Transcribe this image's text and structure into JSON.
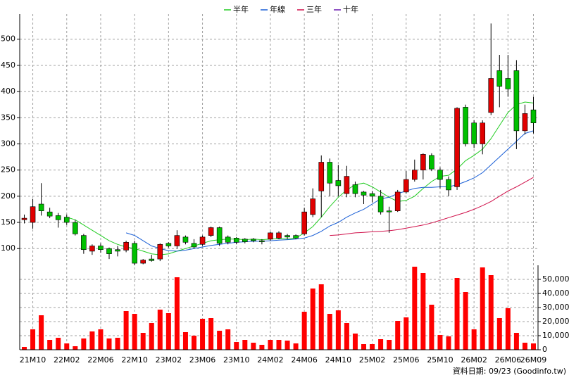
{
  "chart_data": [
    {
      "type": "candlestick",
      "legend": "top",
      "up_color": "#e00000",
      "down_color": "#00c000",
      "open": [
        155,
        150,
        185,
        170,
        163,
        160,
        150,
        125,
        95,
        105,
        100,
        98,
        97,
        110,
        72,
        80,
        80,
        110,
        105,
        122,
        110,
        108,
        125,
        140,
        122,
        120,
        118,
        118,
        115,
        118,
        120,
        125,
        125,
        128,
        165,
        210,
        265,
        230,
        205,
        222,
        208,
        205,
        200,
        172,
        172,
        208,
        232,
        250,
        278,
        250,
        232,
        218,
        370,
        340,
        300,
        360,
        440,
        425,
        440,
        325,
        365
      ],
      "high": [
        165,
        195,
        225,
        178,
        168,
        165,
        155,
        128,
        108,
        110,
        102,
        105,
        115,
        115,
        80,
        88,
        110,
        112,
        135,
        125,
        118,
        125,
        142,
        142,
        125,
        122,
        120,
        120,
        118,
        132,
        133,
        128,
        127,
        178,
        215,
        278,
        272,
        260,
        258,
        228,
        210,
        210,
        212,
        180,
        212,
        248,
        270,
        282,
        282,
        255,
        238,
        370,
        375,
        345,
        345,
        530,
        470,
        470,
        460,
        375,
        390
      ],
      "low": [
        148,
        138,
        163,
        158,
        140,
        145,
        125,
        90,
        88,
        92,
        80,
        85,
        93,
        68,
        70,
        75,
        76,
        102,
        100,
        108,
        100,
        105,
        122,
        105,
        108,
        108,
        110,
        112,
        108,
        115,
        118,
        118,
        118,
        125,
        160,
        160,
        200,
        200,
        198,
        198,
        185,
        188,
        165,
        130,
        170,
        205,
        228,
        232,
        248,
        215,
        200,
        212,
        295,
        292,
        280,
        355,
        370,
        390,
        290,
        318,
        320
      ],
      "close": [
        158,
        180,
        172,
        162,
        155,
        150,
        128,
        98,
        105,
        98,
        90,
        95,
        112,
        72,
        78,
        77,
        108,
        105,
        125,
        112,
        103,
        122,
        140,
        110,
        112,
        112,
        113,
        115,
        113,
        130,
        130,
        122,
        120,
        170,
        195,
        265,
        225,
        220,
        238,
        205,
        202,
        200,
        170,
        170,
        208,
        232,
        250,
        280,
        252,
        232,
        212,
        368,
        300,
        300,
        340,
        425,
        410,
        405,
        325,
        358,
        340
      ],
      "series": [
        {
          "name": "半年",
          "color": "#22cc22",
          "values": [
            null,
            null,
            null,
            null,
            null,
            160,
            155,
            145,
            135,
            125,
            115,
            108,
            103,
            100,
            95,
            90,
            88,
            90,
            95,
            100,
            105,
            110,
            115,
            117,
            118,
            118,
            117,
            118,
            117,
            118,
            119,
            118,
            120,
            130,
            142,
            160,
            180,
            198,
            212,
            222,
            225,
            218,
            208,
            198,
            190,
            192,
            200,
            215,
            228,
            238,
            240,
            252,
            268,
            278,
            290,
            310,
            335,
            360,
            375,
            380,
            378
          ]
        },
        {
          "name": "年線",
          "color": "#1a5fd6",
          "values": [
            null,
            null,
            null,
            null,
            null,
            null,
            null,
            null,
            null,
            null,
            null,
            null,
            130,
            125,
            115,
            105,
            100,
            96,
            95,
            97,
            100,
            103,
            106,
            108,
            110,
            112,
            113,
            114,
            114,
            115,
            116,
            117,
            118,
            120,
            125,
            133,
            143,
            150,
            160,
            168,
            175,
            185,
            195,
            198,
            205,
            210,
            215,
            217,
            217,
            218,
            218,
            222,
            228,
            235,
            245,
            260,
            275,
            290,
            305,
            320,
            325
          ]
        },
        {
          "name": "三年",
          "color": "#d0104a",
          "values": [
            null,
            null,
            null,
            null,
            null,
            null,
            null,
            null,
            null,
            null,
            null,
            null,
            null,
            null,
            null,
            null,
            null,
            null,
            null,
            null,
            null,
            null,
            null,
            null,
            null,
            null,
            null,
            null,
            null,
            null,
            null,
            null,
            null,
            null,
            null,
            null,
            125,
            126,
            128,
            130,
            131,
            132,
            133,
            134,
            136,
            139,
            142,
            145,
            149,
            154,
            159,
            164,
            169,
            175,
            182,
            190,
            200,
            210,
            218,
            227,
            236
          ]
        },
        {
          "name": "十年",
          "color": "#6a1bb0",
          "values": [
            null,
            null,
            null,
            null,
            null,
            null,
            null,
            null,
            null,
            null,
            null,
            null,
            null,
            null,
            null,
            null,
            null,
            null,
            null,
            null,
            null,
            null,
            null,
            null,
            null,
            null,
            null,
            null,
            null,
            null,
            null,
            null,
            null,
            null,
            null,
            null,
            null,
            null,
            null,
            null,
            null,
            null,
            null,
            null,
            null,
            null,
            null,
            null,
            null,
            null,
            null,
            null,
            null,
            null,
            null,
            null,
            null,
            null,
            null,
            null,
            null
          ]
        }
      ],
      "ylim": [
        64,
        548
      ],
      "yticks": [
        100,
        150,
        200,
        250,
        300,
        350,
        400,
        450,
        500
      ],
      "grid": true,
      "footnote": "資料日期: 09/23 (Goodinfo.tw)"
    },
    {
      "type": "bar",
      "color": "#ff0000",
      "categories": [
        null,
        "21M10",
        null,
        null,
        null,
        "22M02",
        null,
        null,
        null,
        "22M06",
        null,
        null,
        null,
        "22M10",
        null,
        null,
        null,
        "23M02",
        null,
        null,
        null,
        "23M06",
        null,
        null,
        null,
        "23M10",
        null,
        null,
        null,
        "24M02",
        null,
        null,
        null,
        "24M06",
        null,
        null,
        null,
        "24M10",
        null,
        null,
        null,
        "25M02",
        null,
        null,
        null,
        "25M06",
        null,
        null,
        null,
        "25M10",
        null,
        null,
        null,
        "26M02",
        null,
        null,
        null,
        "26M06",
        null,
        null,
        "26M09"
      ],
      "values": [
        2000,
        14500,
        24500,
        7000,
        8500,
        4500,
        2500,
        8000,
        13000,
        14500,
        8000,
        8500,
        27500,
        25500,
        12000,
        19000,
        28500,
        26000,
        51500,
        12500,
        10000,
        22000,
        22500,
        13500,
        14500,
        5500,
        7000,
        5000,
        3500,
        7000,
        7000,
        6500,
        4500,
        27000,
        43500,
        46500,
        25500,
        28000,
        19000,
        11500,
        4000,
        4000,
        7500,
        7000,
        20500,
        23000,
        59000,
        54500,
        32000,
        10500,
        9500,
        51000,
        41000,
        14500,
        58500,
        53000,
        22500,
        29500,
        12000,
        5000,
        4500
      ],
      "ylim": [
        0,
        60000
      ],
      "yticks": [
        0,
        {
          "value": 10000,
          "label": "10,000"
        },
        {
          "value": 20000,
          "label": "20,000"
        },
        {
          "value": 30000,
          "label": "30,000"
        },
        {
          "value": 40000,
          "label": "40,000"
        },
        {
          "value": 50000,
          "label": "50,000"
        }
      ],
      "grid": true
    }
  ]
}
